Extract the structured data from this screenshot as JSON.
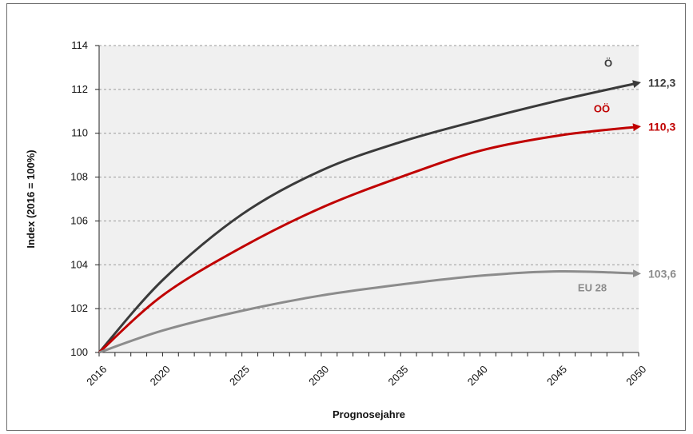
{
  "chart_data": {
    "type": "line",
    "title": "",
    "xlabel": "Prognosejahre",
    "ylabel": "Index (2016 = 100%)",
    "xlim": [
      2016,
      2050
    ],
    "ylim": [
      100,
      114
    ],
    "x_ticks": [
      2016,
      2020,
      2025,
      2030,
      2035,
      2040,
      2045,
      2050
    ],
    "y_ticks": [
      100,
      102,
      104,
      106,
      108,
      110,
      112,
      114
    ],
    "y_tick_labels": [
      "100",
      "102",
      "104",
      "106",
      "108",
      "110",
      "112",
      "114"
    ],
    "grid": "horizontal dashed",
    "plot_background": "#f0f0f0",
    "series": [
      {
        "name": "Ö",
        "color": "#3a3a3a",
        "end_label": "112,3",
        "x": [
          2016,
          2020,
          2025,
          2030,
          2035,
          2040,
          2045,
          2050
        ],
        "y": [
          100.0,
          103.3,
          106.3,
          108.3,
          109.6,
          110.6,
          111.5,
          112.3
        ]
      },
      {
        "name": "OÖ",
        "color": "#c00000",
        "end_label": "110,3",
        "x": [
          2016,
          2020,
          2025,
          2030,
          2035,
          2040,
          2045,
          2050
        ],
        "y": [
          100.0,
          102.6,
          104.8,
          106.6,
          108.0,
          109.2,
          109.9,
          110.3
        ]
      },
      {
        "name": "EU 28",
        "color": "#8c8c8c",
        "end_label": "103,6",
        "x": [
          2016,
          2020,
          2025,
          2030,
          2035,
          2040,
          2045,
          2050
        ],
        "y": [
          100.0,
          101.0,
          101.9,
          102.6,
          103.1,
          103.5,
          103.7,
          103.6
        ]
      }
    ]
  }
}
